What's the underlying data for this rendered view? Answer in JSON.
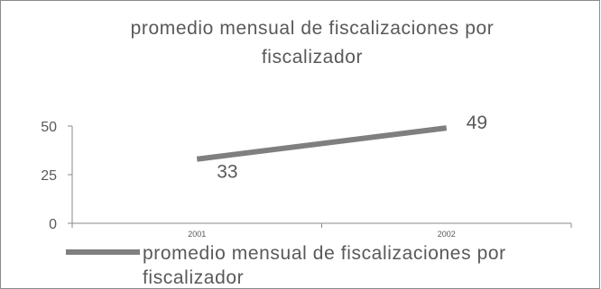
{
  "chart_data": {
    "type": "line",
    "title_lines": [
      "promedio mensual de fiscalizaciones por",
      "fiscalizador"
    ],
    "categories": [
      "2001",
      "2002"
    ],
    "series": [
      {
        "name": "promedio mensual de fiscalizaciones por fiscalizador",
        "values": [
          33,
          49
        ]
      }
    ],
    "legend_lines": [
      "promedio mensual de fiscalizaciones por",
      "fiscalizador"
    ],
    "ylim": [
      0,
      50
    ],
    "yticks": [
      0,
      25,
      50
    ],
    "grid": false,
    "legend_position": "bottom",
    "colors": {
      "series": "#7f7f7f",
      "text": "#595959",
      "axis": "#8a8a8a"
    }
  }
}
